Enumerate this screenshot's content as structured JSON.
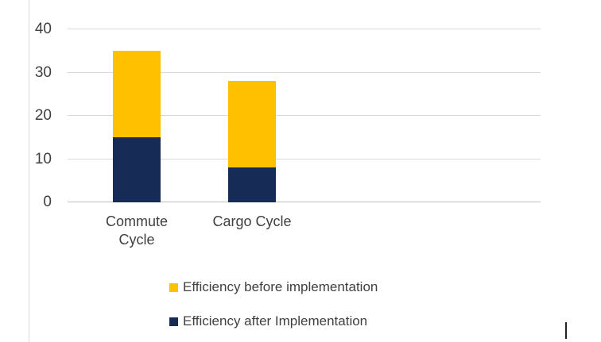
{
  "chart_data": {
    "type": "bar",
    "stacked": true,
    "title": "",
    "categories": [
      "Commute Cycle",
      "Cargo Cycle"
    ],
    "series": [
      {
        "name": "Efficiency after Implementation",
        "color": "#162B55",
        "values": [
          15,
          8
        ]
      },
      {
        "name": "Efficiency before implementation",
        "color": "#FFC000",
        "values": [
          20,
          20
        ]
      }
    ],
    "stack_totals": [
      35,
      28
    ],
    "ylim": [
      0,
      40
    ],
    "yticks": [
      0,
      10,
      20,
      30,
      40
    ],
    "grid": true,
    "legend_position": "bottom",
    "legend": [
      {
        "label": "Efficiency before implementation",
        "color": "#FFC000"
      },
      {
        "label": "Efficiency after Implementation",
        "color": "#162B55"
      }
    ]
  },
  "colors": {
    "background": "#FFFFFF",
    "gridline": "#D9D9D9",
    "axis_line": "#BFBFBF",
    "text": "#404040"
  }
}
